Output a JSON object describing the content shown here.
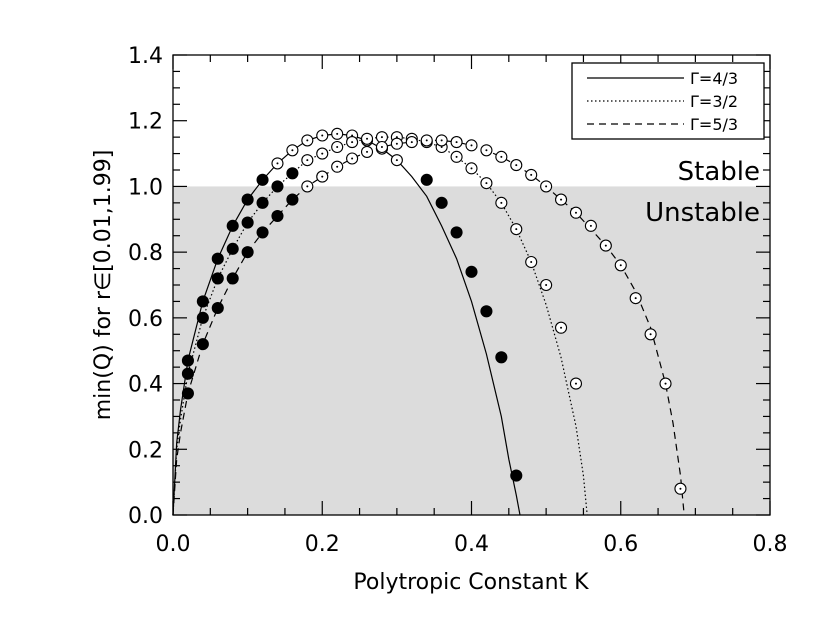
{
  "chart_data": {
    "type": "line",
    "xlabel": "Polytropic Constant K",
    "ylabel": "min(Q) for r∈[0.01,1.99]",
    "xlim": [
      0,
      0.8
    ],
    "ylim": [
      0,
      1.4
    ],
    "x_ticks": [
      "0.0",
      "0.2",
      "0.4",
      "0.6",
      "0.8"
    ],
    "y_ticks": [
      "0.0",
      "0.2",
      "0.4",
      "0.6",
      "0.8",
      "1.0",
      "1.2",
      "1.4"
    ],
    "threshold": 1.0,
    "region_labels": {
      "above": "Stable",
      "below": "Unstable"
    },
    "shade_color": "#dcdcdc",
    "legend_position": "top-right",
    "series": [
      {
        "name": "Γ=4/3",
        "line_style": "solid",
        "markers": "mixed",
        "curve": {
          "x": [
            0.0,
            0.005,
            0.01,
            0.02,
            0.04,
            0.06,
            0.08,
            0.1,
            0.12,
            0.14,
            0.16,
            0.18,
            0.2,
            0.22,
            0.24,
            0.26,
            0.28,
            0.3,
            0.32,
            0.34,
            0.36,
            0.38,
            0.4,
            0.42,
            0.44,
            0.45,
            0.46,
            0.465
          ],
          "y": [
            0.0,
            0.22,
            0.32,
            0.47,
            0.65,
            0.78,
            0.88,
            0.96,
            1.02,
            1.07,
            1.11,
            1.14,
            1.155,
            1.16,
            1.155,
            1.14,
            1.115,
            1.08,
            1.03,
            0.97,
            0.88,
            0.78,
            0.65,
            0.49,
            0.3,
            0.17,
            0.06,
            0.0
          ]
        },
        "points": {
          "x": [
            0.02,
            0.04,
            0.06,
            0.08,
            0.1,
            0.12,
            0.14,
            0.16,
            0.18,
            0.2,
            0.22,
            0.24,
            0.26,
            0.28,
            0.3,
            0.34,
            0.36,
            0.38,
            0.4,
            0.42,
            0.44,
            0.46
          ],
          "y": [
            0.47,
            0.65,
            0.78,
            0.88,
            0.96,
            1.02,
            1.07,
            1.11,
            1.14,
            1.155,
            1.16,
            1.155,
            1.14,
            1.115,
            1.08,
            1.02,
            0.95,
            0.86,
            0.74,
            0.62,
            0.48,
            0.12
          ],
          "filled": [
            true,
            true,
            true,
            true,
            true,
            true,
            false,
            false,
            false,
            false,
            false,
            false,
            false,
            false,
            false,
            true,
            true,
            true,
            true,
            true,
            true,
            true
          ]
        }
      },
      {
        "name": "Γ=3/2",
        "line_style": "dotted",
        "markers": "mixed",
        "curve": {
          "x": [
            0.0,
            0.005,
            0.01,
            0.02,
            0.04,
            0.06,
            0.08,
            0.1,
            0.12,
            0.14,
            0.16,
            0.18,
            0.2,
            0.22,
            0.24,
            0.26,
            0.28,
            0.3,
            0.32,
            0.34,
            0.36,
            0.38,
            0.4,
            0.42,
            0.44,
            0.46,
            0.48,
            0.5,
            0.52,
            0.54,
            0.55,
            0.555
          ],
          "y": [
            0.0,
            0.2,
            0.29,
            0.43,
            0.6,
            0.72,
            0.81,
            0.89,
            0.95,
            1.0,
            1.04,
            1.08,
            1.1,
            1.12,
            1.135,
            1.145,
            1.15,
            1.15,
            1.145,
            1.135,
            1.12,
            1.09,
            1.055,
            1.01,
            0.95,
            0.87,
            0.77,
            0.64,
            0.48,
            0.27,
            0.12,
            0.0
          ]
        },
        "points": {
          "x": [
            0.02,
            0.04,
            0.06,
            0.08,
            0.1,
            0.12,
            0.14,
            0.16,
            0.18,
            0.2,
            0.22,
            0.24,
            0.26,
            0.28,
            0.3,
            0.32,
            0.34,
            0.36,
            0.38,
            0.4,
            0.42,
            0.44,
            0.46,
            0.48,
            0.5,
            0.52,
            0.54
          ],
          "y": [
            0.43,
            0.6,
            0.72,
            0.81,
            0.89,
            0.95,
            1.0,
            1.04,
            1.08,
            1.1,
            1.12,
            1.135,
            1.145,
            1.15,
            1.15,
            1.145,
            1.135,
            1.12,
            1.09,
            1.055,
            1.01,
            0.95,
            0.87,
            0.77,
            0.7,
            0.57,
            0.4
          ],
          "filled": [
            true,
            true,
            true,
            true,
            true,
            true,
            true,
            true,
            false,
            false,
            false,
            false,
            false,
            false,
            false,
            false,
            false,
            false,
            false,
            false,
            false,
            false,
            false,
            false,
            false,
            false,
            false
          ]
        }
      },
      {
        "name": "Γ=5/3",
        "line_style": "dashed",
        "markers": "mixed",
        "curve": {
          "x": [
            0.0,
            0.005,
            0.01,
            0.02,
            0.04,
            0.06,
            0.08,
            0.1,
            0.12,
            0.14,
            0.16,
            0.18,
            0.2,
            0.22,
            0.24,
            0.26,
            0.28,
            0.3,
            0.32,
            0.34,
            0.36,
            0.38,
            0.4,
            0.42,
            0.44,
            0.46,
            0.48,
            0.5,
            0.52,
            0.54,
            0.56,
            0.58,
            0.6,
            0.62,
            0.64,
            0.66,
            0.67,
            0.68,
            0.685
          ],
          "y": [
            0.0,
            0.17,
            0.25,
            0.37,
            0.52,
            0.63,
            0.72,
            0.8,
            0.86,
            0.91,
            0.96,
            1.0,
            1.03,
            1.06,
            1.085,
            1.105,
            1.12,
            1.13,
            1.135,
            1.14,
            1.14,
            1.135,
            1.125,
            1.11,
            1.09,
            1.065,
            1.035,
            1.0,
            0.96,
            0.92,
            0.87,
            0.82,
            0.76,
            0.68,
            0.57,
            0.4,
            0.28,
            0.12,
            0.0
          ]
        },
        "points": {
          "x": [
            0.02,
            0.04,
            0.06,
            0.08,
            0.1,
            0.12,
            0.14,
            0.16,
            0.18,
            0.2,
            0.22,
            0.24,
            0.26,
            0.28,
            0.3,
            0.32,
            0.34,
            0.36,
            0.38,
            0.4,
            0.42,
            0.44,
            0.46,
            0.48,
            0.5,
            0.52,
            0.54,
            0.56,
            0.58,
            0.6,
            0.62,
            0.64,
            0.66,
            0.68
          ],
          "y": [
            0.37,
            0.52,
            0.63,
            0.72,
            0.8,
            0.86,
            0.91,
            0.96,
            1.0,
            1.03,
            1.06,
            1.085,
            1.105,
            1.12,
            1.13,
            1.135,
            1.14,
            1.14,
            1.135,
            1.125,
            1.11,
            1.09,
            1.065,
            1.035,
            1.0,
            0.96,
            0.92,
            0.88,
            0.82,
            0.76,
            0.66,
            0.55,
            0.4,
            0.08
          ],
          "filled": [
            true,
            true,
            true,
            true,
            true,
            true,
            true,
            true,
            false,
            false,
            false,
            false,
            false,
            false,
            false,
            false,
            false,
            false,
            false,
            false,
            false,
            false,
            false,
            false,
            false,
            false,
            false,
            false,
            false,
            false,
            false,
            false,
            false,
            false
          ]
        }
      }
    ]
  }
}
